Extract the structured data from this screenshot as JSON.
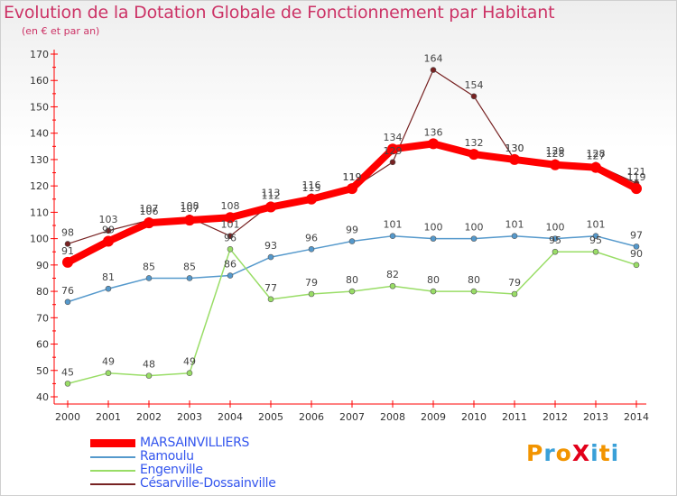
{
  "title": "Evolution de la Dotation Globale de Fonctionnement par Habitant",
  "subtitle": "(en € et par an)",
  "logo": {
    "text": "ProXiti",
    "colors": [
      "#f29400",
      "#3aa0d8",
      "#f29400",
      "#e2001a",
      "#3aa0d8",
      "#f29400",
      "#3aa0d8"
    ]
  },
  "chart_data": {
    "type": "line",
    "title": "Evolution de la Dotation Globale de Fonctionnement par Habitant",
    "subtitle": "(en € et par an)",
    "x": [
      "2000",
      "2001",
      "2002",
      "2003",
      "2004",
      "2005",
      "2006",
      "2007",
      "2008",
      "2009",
      "2010",
      "2011",
      "2012",
      "2013",
      "2014"
    ],
    "ylim": [
      40,
      170
    ],
    "yticks": [
      40,
      50,
      60,
      70,
      80,
      90,
      100,
      110,
      120,
      130,
      140,
      150,
      160,
      170
    ],
    "grid": false,
    "legend_position": "bottom-left",
    "series": [
      {
        "name": "Césarville-Dossainville",
        "color": "#772222",
        "values": [
          98,
          103,
          107,
          108,
          101,
          113,
          116,
          119,
          129,
          164,
          154,
          130,
          129,
          128,
          121
        ]
      },
      {
        "name": "Ramoulu",
        "color": "#5599cc",
        "values": [
          76,
          81,
          85,
          85,
          86,
          93,
          96,
          99,
          101,
          100,
          100,
          101,
          100,
          101,
          97
        ]
      },
      {
        "name": "Engenville",
        "color": "#99dd66",
        "values": [
          45,
          49,
          48,
          49,
          96,
          77,
          79,
          80,
          82,
          80,
          80,
          79,
          95,
          95,
          90
        ]
      },
      {
        "name": "MARSAINVILLIERS",
        "color": "#ff0000",
        "values": [
          91,
          99,
          106,
          107,
          108,
          112,
          115,
          119,
          134,
          136,
          132,
          130,
          128,
          127,
          119
        ]
      }
    ],
    "legend": [
      "MARSAINVILLIERS",
      "Ramoulu",
      "Engenville",
      "Césarville-Dossainville"
    ]
  }
}
